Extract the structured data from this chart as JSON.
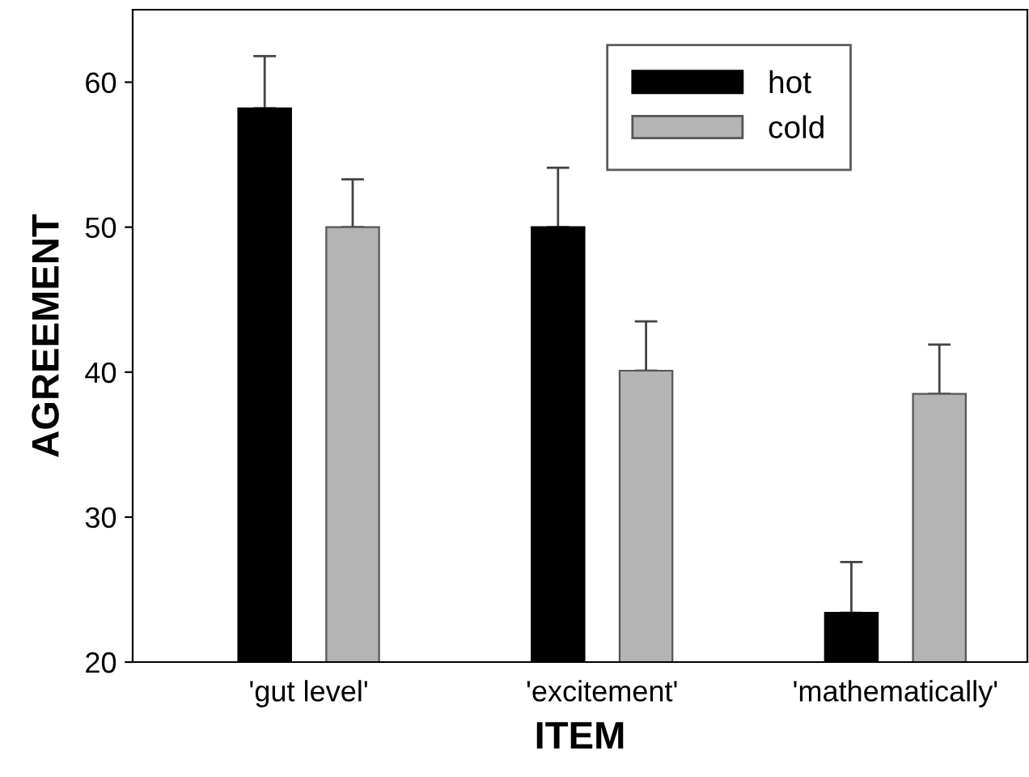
{
  "chart_data": {
    "type": "bar",
    "xlabel": "ITEM",
    "ylabel": "AGREEMENT",
    "categories": [
      "'gut level'",
      "'excitement'",
      "'mathematically'"
    ],
    "series": [
      {
        "name": "hot",
        "color": "#000000",
        "values": [
          58.2,
          50.0,
          23.4
        ],
        "errors": [
          [
            58.2,
            61.8
          ],
          [
            50.0,
            54.1
          ],
          [
            23.4,
            26.9
          ]
        ]
      },
      {
        "name": "cold",
        "color": "#b4b4b4",
        "values": [
          50.0,
          40.1,
          38.5
        ],
        "errors": [
          [
            50.0,
            53.3
          ],
          [
            40.1,
            43.5
          ],
          [
            38.5,
            41.9
          ]
        ]
      }
    ],
    "ylim": [
      20,
      65
    ],
    "yticks": [
      20,
      30,
      40,
      50,
      60
    ],
    "grid": false,
    "legend": "top right"
  }
}
